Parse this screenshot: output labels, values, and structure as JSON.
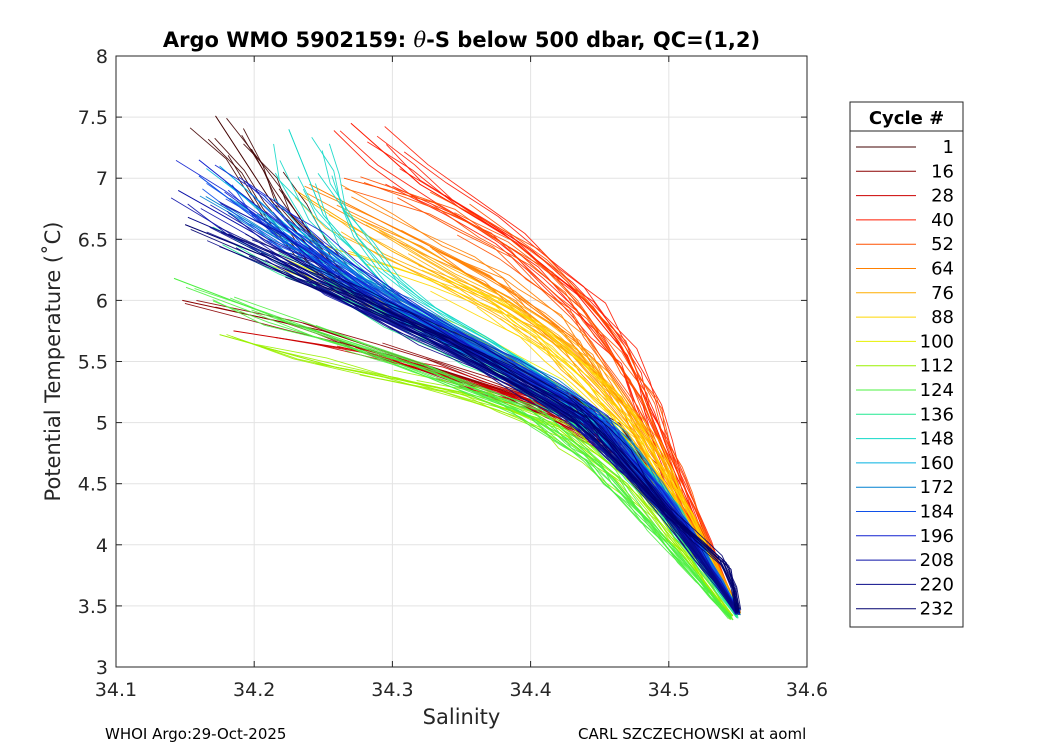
{
  "chart_data": {
    "type": "line",
    "title_prefix": "Argo WMO 5902159: ",
    "title_theta": "θ",
    "title_suffix": "-S below 500 dbar,  QC=(1,2)",
    "xlabel": "Salinity",
    "ylabel": "Potential Temperature (˚C)",
    "xlim": [
      34.1,
      34.6
    ],
    "ylim": [
      3,
      8
    ],
    "xticks": [
      "34.1",
      "34.2",
      "34.3",
      "34.4",
      "34.5",
      "34.6"
    ],
    "yticks": [
      "3",
      "3.5",
      "4",
      "4.5",
      "5",
      "5.5",
      "6",
      "6.5",
      "7",
      "7.5",
      "8"
    ],
    "grid": true,
    "legend_title": "Cycle #",
    "legend_position": "right",
    "series": [
      {
        "name": "1",
        "color": "#400000",
        "values": [
          [
            34.172,
            7.51
          ],
          [
            34.21,
            6.85
          ],
          [
            34.26,
            6.15
          ],
          [
            34.32,
            5.8
          ],
          [
            34.4,
            5.4
          ],
          [
            34.46,
            4.95
          ],
          [
            34.51,
            4.2
          ],
          [
            34.55,
            3.47
          ]
        ]
      },
      {
        "name": "16",
        "color": "#8b0000",
        "values": [
          [
            34.148,
            6.0
          ],
          [
            34.25,
            5.75
          ],
          [
            34.33,
            5.45
          ],
          [
            34.41,
            5.15
          ],
          [
            34.47,
            4.75
          ],
          [
            34.51,
            4.1
          ],
          [
            34.55,
            3.45
          ]
        ]
      },
      {
        "name": "28",
        "color": "#cc0000",
        "values": [
          [
            34.185,
            5.75
          ],
          [
            34.27,
            5.6
          ],
          [
            34.35,
            5.35
          ],
          [
            34.42,
            5.1
          ],
          [
            34.48,
            4.7
          ],
          [
            34.52,
            4.0
          ],
          [
            34.55,
            3.45
          ]
        ]
      },
      {
        "name": "40",
        "color": "#ff1a00",
        "values": [
          [
            34.27,
            7.45
          ],
          [
            34.32,
            6.95
          ],
          [
            34.38,
            6.55
          ],
          [
            34.43,
            6.1
          ],
          [
            34.47,
            5.55
          ],
          [
            34.5,
            4.7
          ],
          [
            34.53,
            3.95
          ],
          [
            34.55,
            3.45
          ]
        ]
      },
      {
        "name": "52",
        "color": "#ff5000",
        "values": [
          [
            34.265,
            7.0
          ],
          [
            34.33,
            6.8
          ],
          [
            34.39,
            6.4
          ],
          [
            34.44,
            5.9
          ],
          [
            34.48,
            5.2
          ],
          [
            34.51,
            4.4
          ],
          [
            34.55,
            3.45
          ]
        ]
      },
      {
        "name": "64",
        "color": "#ff8000",
        "values": [
          [
            34.24,
            6.95
          ],
          [
            34.3,
            6.6
          ],
          [
            34.37,
            6.2
          ],
          [
            34.43,
            5.7
          ],
          [
            34.47,
            5.1
          ],
          [
            34.51,
            4.3
          ],
          [
            34.55,
            3.45
          ]
        ]
      },
      {
        "name": "76",
        "color": "#ffae00",
        "values": [
          [
            34.23,
            6.9
          ],
          [
            34.3,
            6.4
          ],
          [
            34.37,
            6.0
          ],
          [
            34.43,
            5.55
          ],
          [
            34.48,
            4.9
          ],
          [
            34.52,
            4.1
          ],
          [
            34.55,
            3.45
          ]
        ]
      },
      {
        "name": "88",
        "color": "#ffd700",
        "values": [
          [
            34.25,
            6.45
          ],
          [
            34.32,
            6.2
          ],
          [
            34.38,
            5.9
          ],
          [
            34.43,
            5.45
          ],
          [
            34.48,
            4.85
          ],
          [
            34.52,
            4.05
          ],
          [
            34.55,
            3.45
          ]
        ]
      },
      {
        "name": "100",
        "color": "#e6f000",
        "values": [
          [
            34.22,
            6.35
          ],
          [
            34.29,
            6.0
          ],
          [
            34.36,
            5.7
          ],
          [
            34.42,
            5.3
          ],
          [
            34.47,
            4.8
          ],
          [
            34.52,
            4.05
          ],
          [
            34.55,
            3.45
          ]
        ]
      },
      {
        "name": "112",
        "color": "#9af000",
        "values": [
          [
            34.175,
            5.72
          ],
          [
            34.26,
            5.45
          ],
          [
            34.35,
            5.25
          ],
          [
            34.42,
            4.95
          ],
          [
            34.47,
            4.5
          ],
          [
            34.51,
            3.95
          ],
          [
            34.545,
            3.4
          ]
        ]
      },
      {
        "name": "124",
        "color": "#4cf040",
        "values": [
          [
            34.142,
            6.18
          ],
          [
            34.23,
            5.8
          ],
          [
            34.32,
            5.45
          ],
          [
            34.4,
            5.1
          ],
          [
            34.45,
            4.65
          ],
          [
            34.5,
            4.0
          ],
          [
            34.545,
            3.4
          ]
        ]
      },
      {
        "name": "136",
        "color": "#20e890",
        "values": [
          [
            34.17,
            6.6
          ],
          [
            34.24,
            6.2
          ],
          [
            34.31,
            5.8
          ],
          [
            34.39,
            5.35
          ],
          [
            34.45,
            4.9
          ],
          [
            34.5,
            4.2
          ],
          [
            34.55,
            3.42
          ]
        ]
      },
      {
        "name": "148",
        "color": "#10d8c8",
        "values": [
          [
            34.225,
            7.4
          ],
          [
            34.25,
            6.7
          ],
          [
            34.3,
            6.05
          ],
          [
            34.38,
            5.55
          ],
          [
            34.45,
            5.0
          ],
          [
            34.51,
            4.2
          ],
          [
            34.55,
            3.45
          ]
        ]
      },
      {
        "name": "160",
        "color": "#00b0e0",
        "values": [
          [
            34.175,
            7.1
          ],
          [
            34.23,
            6.55
          ],
          [
            34.3,
            5.95
          ],
          [
            34.38,
            5.45
          ],
          [
            34.45,
            4.95
          ],
          [
            34.51,
            4.15
          ],
          [
            34.55,
            3.45
          ]
        ]
      },
      {
        "name": "172",
        "color": "#0080d0",
        "values": [
          [
            34.165,
            6.85
          ],
          [
            34.24,
            6.35
          ],
          [
            34.32,
            5.85
          ],
          [
            34.4,
            5.4
          ],
          [
            34.46,
            4.95
          ],
          [
            34.51,
            4.15
          ],
          [
            34.55,
            3.45
          ]
        ]
      },
      {
        "name": "184",
        "color": "#1050e8",
        "values": [
          [
            34.16,
            7.02
          ],
          [
            34.22,
            6.5
          ],
          [
            34.3,
            5.95
          ],
          [
            34.38,
            5.5
          ],
          [
            34.45,
            5.0
          ],
          [
            34.51,
            4.2
          ],
          [
            34.55,
            3.45
          ]
        ]
      },
      {
        "name": "196",
        "color": "#1020d0",
        "values": [
          [
            34.16,
            7.15
          ],
          [
            34.21,
            6.7
          ],
          [
            34.28,
            6.1
          ],
          [
            34.36,
            5.6
          ],
          [
            34.44,
            5.1
          ],
          [
            34.5,
            4.3
          ],
          [
            34.55,
            3.45
          ]
        ]
      },
      {
        "name": "208",
        "color": "#0a10a8",
        "values": [
          [
            34.145,
            6.9
          ],
          [
            34.2,
            6.55
          ],
          [
            34.27,
            6.05
          ],
          [
            34.35,
            5.6
          ],
          [
            34.43,
            5.1
          ],
          [
            34.5,
            4.3
          ],
          [
            34.55,
            3.45
          ]
        ]
      },
      {
        "name": "220",
        "color": "#080a88",
        "values": [
          [
            34.152,
            6.68
          ],
          [
            34.22,
            6.35
          ],
          [
            34.3,
            5.85
          ],
          [
            34.38,
            5.4
          ],
          [
            34.44,
            5.0
          ],
          [
            34.5,
            4.25
          ],
          [
            34.55,
            3.45
          ]
        ]
      },
      {
        "name": "232",
        "color": "#00006e",
        "values": [
          [
            34.15,
            6.62
          ],
          [
            34.21,
            6.35
          ],
          [
            34.29,
            5.95
          ],
          [
            34.37,
            5.5
          ],
          [
            34.44,
            5.05
          ],
          [
            34.5,
            4.25
          ],
          [
            34.545,
            3.8
          ],
          [
            34.55,
            3.45
          ]
        ]
      }
    ]
  },
  "footer": {
    "left": "WHOI Argo:29-Oct-2025",
    "right": "CARL SZCZECHOWSKI at aoml"
  }
}
